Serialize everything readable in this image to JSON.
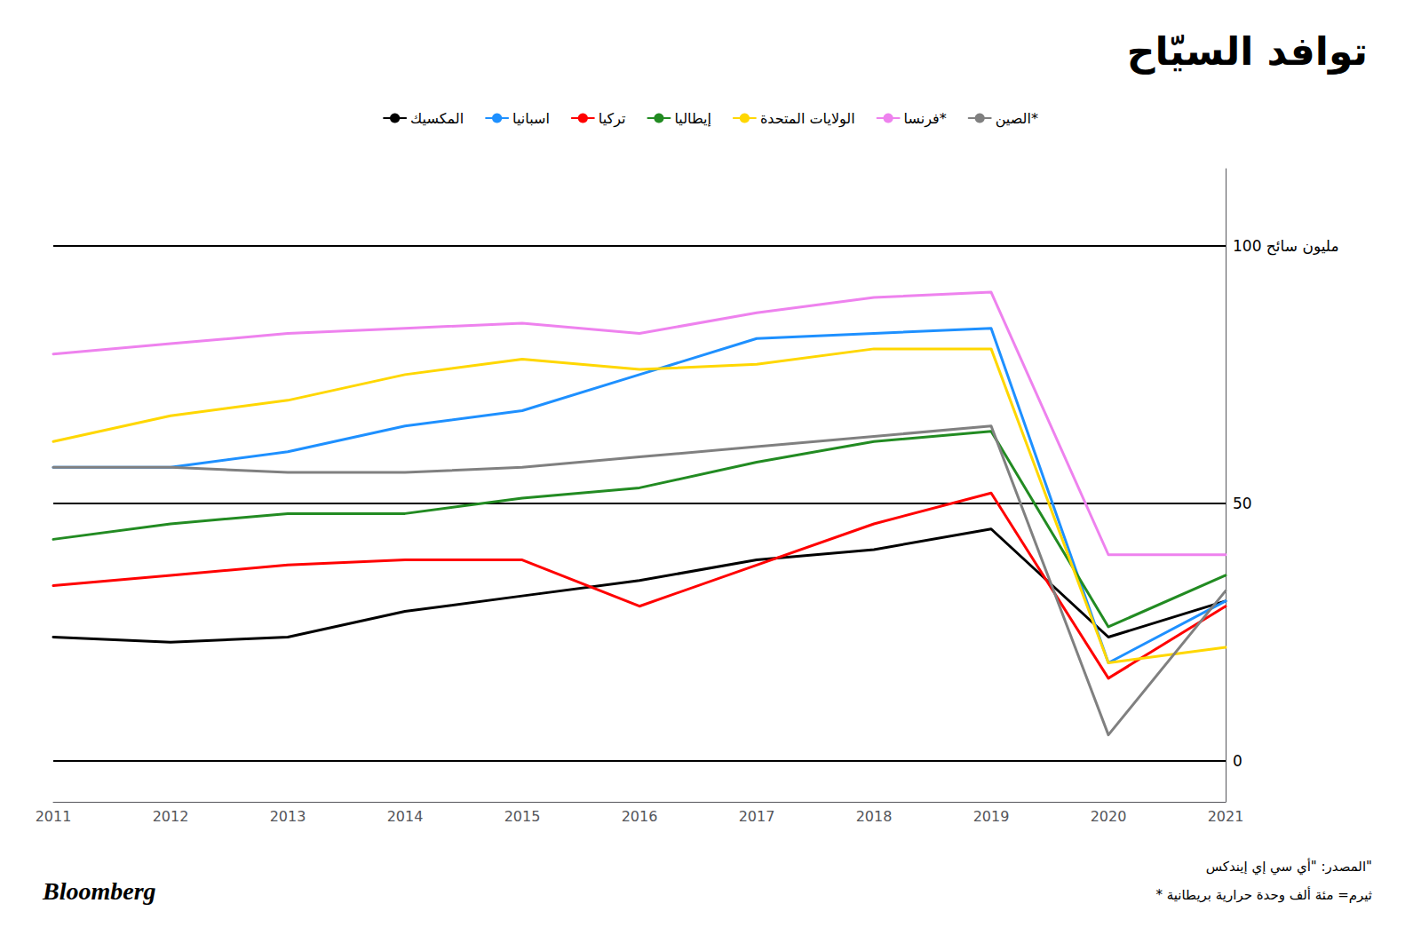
{
  "chart_data": {
    "type": "line",
    "title": "توافد السيّاح",
    "x": [
      2011,
      2012,
      2013,
      2014,
      2015,
      2016,
      2017,
      2018,
      2019,
      2020,
      2021
    ],
    "series": [
      {
        "name": "المكسيك",
        "color": "#000000",
        "values": [
          24,
          23,
          24,
          29,
          32,
          35,
          39,
          41,
          45,
          24,
          31
        ]
      },
      {
        "name": "اسبانيا",
        "color": "#1e90ff",
        "values": [
          57,
          57,
          60,
          65,
          68,
          75,
          82,
          83,
          84,
          19,
          31
        ]
      },
      {
        "name": "تركيا",
        "color": "#ff0000",
        "values": [
          34,
          36,
          38,
          39,
          39,
          30,
          38,
          46,
          52,
          16,
          30
        ]
      },
      {
        "name": "إيطاليا",
        "color": "#228b22",
        "values": [
          43,
          46,
          48,
          48,
          51,
          53,
          58,
          62,
          64,
          26,
          36
        ]
      },
      {
        "name": "الولايات المتحدة",
        "color": "#ffd700",
        "values": [
          62,
          67,
          70,
          75,
          78,
          76,
          77,
          80,
          80,
          19,
          22
        ]
      },
      {
        "name": "فرنسا*",
        "color": "#ee82ee",
        "values": [
          79,
          81,
          83,
          84,
          85,
          83,
          87,
          90,
          91,
          40,
          40
        ]
      },
      {
        "name": "الصين*",
        "color": "#808080",
        "values": [
          57,
          57,
          56,
          56,
          57,
          59,
          61,
          63,
          65,
          5,
          33
        ]
      }
    ],
    "xlim": [
      2011,
      2021
    ],
    "xticks": [
      2011,
      2012,
      2013,
      2014,
      2015,
      2016,
      2017,
      2018,
      2019,
      2020,
      2021
    ],
    "ylim": [
      -8,
      115
    ],
    "yticks": [
      0,
      50,
      {
        "value": 100,
        "label": "100 مليون سائح"
      }
    ],
    "grid": true,
    "legend": "top",
    "annotations": [
      "المصدر: \"أي سي إي إيندكس\"",
      "* ثيرم= مئة ألف وحدة حرارية بريطانية",
      "Bloomberg"
    ]
  }
}
